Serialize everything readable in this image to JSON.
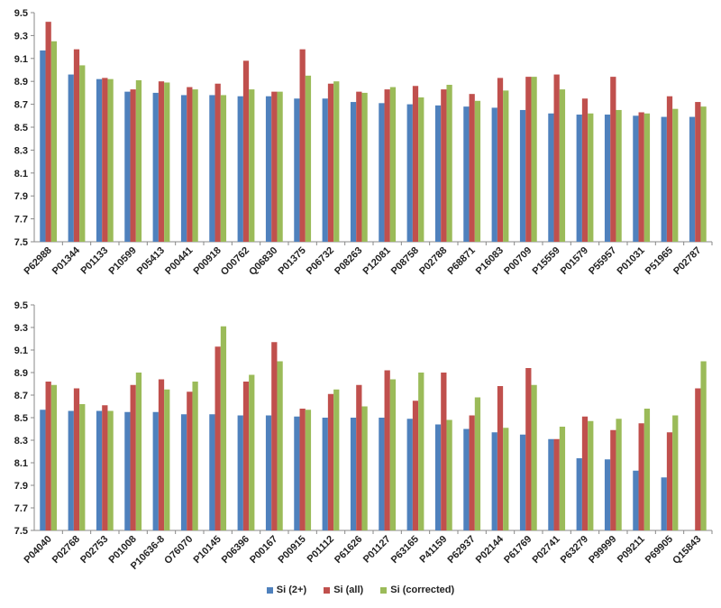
{
  "legend": {
    "items": [
      {
        "label": "Si (2+)",
        "color": "#4f81bd"
      },
      {
        "label": "Si (all)",
        "color": "#c0504d"
      },
      {
        "label": "Si (corrected)",
        "color": "#9bbb59"
      }
    ]
  },
  "chart_data": [
    {
      "type": "bar",
      "title": "",
      "xlabel": "",
      "ylabel": "",
      "ylim": [
        7.5,
        9.5
      ],
      "yticks": [
        "7.5",
        "7.7",
        "7.9",
        "8.1",
        "8.3",
        "8.5",
        "8.7",
        "8.9",
        "9.1",
        "9.3",
        "9.5"
      ],
      "grid": false,
      "legend_position": "bottom",
      "categories": [
        "P62988",
        "P01344",
        "P01133",
        "P10599",
        "P05413",
        "P00441",
        "P00918",
        "O00762",
        "Q06830",
        "P01375",
        "P06732",
        "P08263",
        "P12081",
        "P08758",
        "P02788",
        "P68871",
        "P16083",
        "P00709",
        "P15559",
        "P01579",
        "P55957",
        "P01031",
        "P51965",
        "P02787"
      ],
      "series": [
        {
          "name": "Si (2+)",
          "color": "#4f81bd",
          "values": [
            9.17,
            8.96,
            8.92,
            8.81,
            8.8,
            8.78,
            8.78,
            8.77,
            8.77,
            8.75,
            8.75,
            8.72,
            8.71,
            8.7,
            8.69,
            8.68,
            8.67,
            8.65,
            8.62,
            8.61,
            8.61,
            8.6,
            8.59,
            8.59
          ]
        },
        {
          "name": "Si (all)",
          "color": "#c0504d",
          "values": [
            9.42,
            9.18,
            8.93,
            8.83,
            8.9,
            8.85,
            8.88,
            9.08,
            8.81,
            9.18,
            8.88,
            8.81,
            8.83,
            8.86,
            8.83,
            8.79,
            8.93,
            8.94,
            8.96,
            8.75,
            8.94,
            8.63,
            8.77,
            8.72
          ]
        },
        {
          "name": "Si (corrected)",
          "color": "#9bbb59",
          "values": [
            9.25,
            9.04,
            8.92,
            8.91,
            8.89,
            8.83,
            8.78,
            8.83,
            8.81,
            8.95,
            8.9,
            8.8,
            8.85,
            8.76,
            8.87,
            8.73,
            8.82,
            8.94,
            8.83,
            8.62,
            8.65,
            8.62,
            8.66,
            8.68
          ]
        }
      ]
    },
    {
      "type": "bar",
      "title": "",
      "xlabel": "",
      "ylabel": "",
      "ylim": [
        7.5,
        9.5
      ],
      "yticks": [
        "7.5",
        "7.7",
        "7.9",
        "8.1",
        "8.3",
        "8.5",
        "8.7",
        "8.9",
        "9.1",
        "9.3",
        "9.5"
      ],
      "grid": false,
      "legend_position": "bottom",
      "categories": [
        "P04040",
        "P02768",
        "P02753",
        "P01008",
        "P10636-8",
        "O76070",
        "P10145",
        "P06396",
        "P00167",
        "P00915",
        "P01112",
        "P61626",
        "P01127",
        "P63165",
        "P41159",
        "P62937",
        "P02144",
        "P61769",
        "P02741",
        "P63279",
        "P99999",
        "P09211",
        "P69905",
        "Q15843"
      ],
      "series": [
        {
          "name": "Si (2+)",
          "color": "#4f81bd",
          "values": [
            8.57,
            8.56,
            8.56,
            8.55,
            8.55,
            8.53,
            8.53,
            8.52,
            8.52,
            8.51,
            8.5,
            8.5,
            8.5,
            8.49,
            8.44,
            8.4,
            8.37,
            8.35,
            8.31,
            8.14,
            8.13,
            8.03,
            7.97,
            null
          ]
        },
        {
          "name": "Si (all)",
          "color": "#c0504d",
          "values": [
            8.82,
            8.76,
            8.61,
            8.79,
            8.84,
            8.73,
            9.13,
            8.82,
            9.17,
            8.58,
            8.71,
            8.79,
            8.92,
            8.65,
            8.9,
            8.52,
            8.78,
            8.94,
            8.31,
            8.51,
            8.39,
            8.45,
            8.37,
            8.76
          ]
        },
        {
          "name": "Si (corrected)",
          "color": "#9bbb59",
          "values": [
            8.79,
            8.62,
            8.56,
            8.9,
            8.75,
            8.82,
            9.31,
            8.88,
            9.0,
            8.57,
            8.75,
            8.6,
            8.84,
            8.9,
            8.48,
            8.68,
            8.41,
            8.79,
            8.42,
            8.47,
            8.49,
            8.58,
            8.52,
            9.0
          ]
        }
      ]
    }
  ]
}
